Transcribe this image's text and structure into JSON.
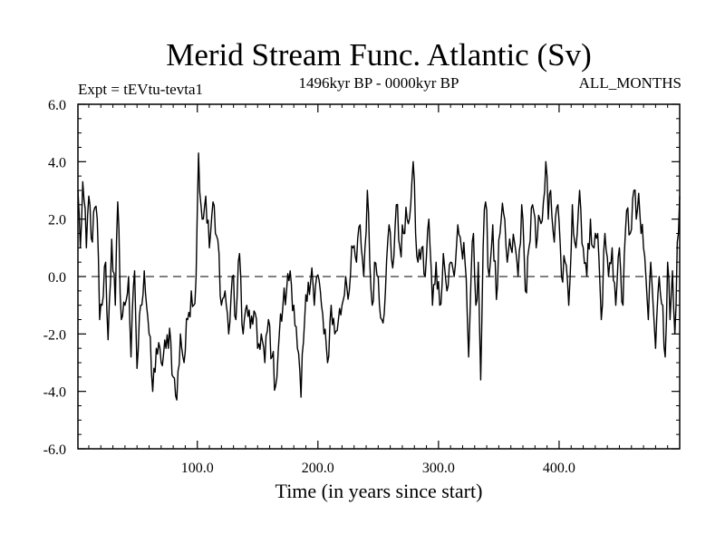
{
  "chart_data": {
    "type": "line",
    "title": "Merid Stream Func. Atlantic (Sv)",
    "subtitle": "1496kyr BP - 0000kyr BP",
    "left_label": "Expt = tEVtu-tevta1",
    "right_label": "ALL_MONTHS",
    "xlabel": "Time (in years since start)",
    "ylabel": "",
    "xlim": [
      1,
      500
    ],
    "ylim": [
      -6,
      6
    ],
    "x_ticks": [
      100,
      200,
      300,
      400
    ],
    "x_tick_labels": [
      "100.0",
      "200.0",
      "300.0",
      "400.0"
    ],
    "y_ticks": [
      6,
      4,
      2,
      0,
      -2,
      -4,
      -6
    ],
    "y_tick_labels": [
      "6.0",
      "4.0",
      "2.0",
      "0.0",
      "-2.0",
      "-4.0",
      "-6.0"
    ],
    "reference_line": 0,
    "series": [
      {
        "name": "Merid Stream Func. Atlantic",
        "x_start": 1,
        "x_step": 1,
        "anchors": [
          [
            1,
            3.0
          ],
          [
            3,
            1.0
          ],
          [
            5,
            3.3
          ],
          [
            8,
            1.0
          ],
          [
            10,
            2.8
          ],
          [
            13,
            1.2
          ],
          [
            15,
            2.4
          ],
          [
            17,
            2.0
          ],
          [
            19,
            -1.5
          ],
          [
            21,
            -1.0
          ],
          [
            24,
            0.5
          ],
          [
            26,
            -2.2
          ],
          [
            29,
            1.3
          ],
          [
            32,
            -1.0
          ],
          [
            34,
            2.6
          ],
          [
            37,
            -1.5
          ],
          [
            40,
            -1.0
          ],
          [
            43,
            0.0
          ],
          [
            45,
            -2.8
          ],
          [
            48,
            0.2
          ],
          [
            50,
            -3.2
          ],
          [
            53,
            -1.0
          ],
          [
            56,
            0.2
          ],
          [
            60,
            -2.0
          ],
          [
            63,
            -4.0
          ],
          [
            66,
            -2.5
          ],
          [
            70,
            -3.0
          ],
          [
            74,
            -2.5
          ],
          [
            77,
            -1.8
          ],
          [
            80,
            -3.5
          ],
          [
            83,
            -4.3
          ],
          [
            86,
            -2.0
          ],
          [
            89,
            -3.0
          ],
          [
            92,
            -1.5
          ],
          [
            95,
            -0.5
          ],
          [
            97,
            -1.0
          ],
          [
            99,
            0.0
          ],
          [
            101,
            4.3
          ],
          [
            104,
            2.0
          ],
          [
            107,
            2.8
          ],
          [
            110,
            1.0
          ],
          [
            113,
            2.6
          ],
          [
            115,
            1.5
          ],
          [
            118,
            0.8
          ],
          [
            120,
            -1.0
          ],
          [
            123,
            -0.5
          ],
          [
            126,
            -2.0
          ],
          [
            129,
            0.0
          ],
          [
            132,
            -1.5
          ],
          [
            135,
            0.8
          ],
          [
            138,
            -2.0
          ],
          [
            141,
            -1.0
          ],
          [
            144,
            -1.8
          ],
          [
            147,
            -1.2
          ],
          [
            150,
            -2.5
          ],
          [
            153,
            -2.0
          ],
          [
            156,
            -3.0
          ],
          [
            159,
            -1.5
          ],
          [
            162,
            -2.8
          ],
          [
            165,
            -3.8
          ],
          [
            168,
            -2.0
          ],
          [
            171,
            -1.0
          ],
          [
            174,
            -0.5
          ],
          [
            177,
            0.2
          ],
          [
            180,
            -1.0
          ],
          [
            183,
            -2.5
          ],
          [
            186,
            -4.2
          ],
          [
            189,
            -1.5
          ],
          [
            192,
            -0.2
          ],
          [
            195,
            0.3
          ],
          [
            197,
            -1.0
          ],
          [
            199,
            0.0
          ],
          [
            202,
            -0.5
          ],
          [
            205,
            -2.0
          ],
          [
            208,
            -3.0
          ],
          [
            211,
            -1.0
          ],
          [
            214,
            -2.0
          ],
          [
            217,
            -1.5
          ],
          [
            220,
            -1.0
          ],
          [
            223,
            0.0
          ],
          [
            226,
            -0.5
          ],
          [
            229,
            1.0
          ],
          [
            232,
            0.5
          ],
          [
            235,
            1.8
          ],
          [
            238,
            0.0
          ],
          [
            241,
            3.0
          ],
          [
            243,
            0.5
          ],
          [
            245,
            -1.0
          ],
          [
            247,
            0.5
          ],
          [
            250,
            0.0
          ],
          [
            253,
            -1.5
          ],
          [
            256,
            -0.5
          ],
          [
            259,
            1.8
          ],
          [
            262,
            0.3
          ],
          [
            265,
            2.5
          ],
          [
            268,
            1.0
          ],
          [
            271,
            1.5
          ],
          [
            274,
            2.0
          ],
          [
            277,
            2.5
          ],
          [
            279,
            4.0
          ],
          [
            281,
            1.5
          ],
          [
            283,
            0.5
          ],
          [
            286,
            1.0
          ],
          [
            289,
            0.0
          ],
          [
            292,
            2.0
          ],
          [
            295,
            -1.0
          ],
          [
            298,
            0.5
          ],
          [
            301,
            -1.0
          ],
          [
            304,
            0.8
          ],
          [
            307,
            -0.5
          ],
          [
            310,
            0.5
          ],
          [
            313,
            0.0
          ],
          [
            316,
            1.8
          ],
          [
            319,
            1.0
          ],
          [
            322,
            0.5
          ],
          [
            325,
            -2.8
          ],
          [
            327,
            0.0
          ],
          [
            329,
            1.5
          ],
          [
            331,
            -1.0
          ],
          [
            333,
            0.5
          ],
          [
            335,
            -3.6
          ],
          [
            337,
            1.0
          ],
          [
            339,
            2.6
          ],
          [
            342,
            0.0
          ],
          [
            345,
            1.8
          ],
          [
            348,
            -0.8
          ],
          [
            351,
            1.5
          ],
          [
            354,
            2.2
          ],
          [
            357,
            0.5
          ],
          [
            360,
            1.0
          ],
          [
            363,
            1.2
          ],
          [
            366,
            0.0
          ],
          [
            369,
            2.5
          ],
          [
            372,
            -0.5
          ],
          [
            375,
            1.0
          ],
          [
            378,
            2.5
          ],
          [
            381,
            1.0
          ],
          [
            384,
            2.0
          ],
          [
            387,
            2.6
          ],
          [
            389,
            4.0
          ],
          [
            391,
            2.0
          ],
          [
            393,
            3.0
          ],
          [
            396,
            1.2
          ],
          [
            399,
            2.5
          ],
          [
            402,
            0.0
          ],
          [
            405,
            0.5
          ],
          [
            408,
            -1.0
          ],
          [
            411,
            2.5
          ],
          [
            414,
            1.0
          ],
          [
            417,
            3.0
          ],
          [
            420,
            1.0
          ],
          [
            423,
            0.0
          ],
          [
            426,
            2.0
          ],
          [
            429,
            1.0
          ],
          [
            432,
            1.5
          ],
          [
            435,
            -1.5
          ],
          [
            438,
            1.5
          ],
          [
            441,
            0.0
          ],
          [
            444,
            1.0
          ],
          [
            447,
            -1.0
          ],
          [
            450,
            1.0
          ],
          [
            453,
            -1.0
          ],
          [
            456,
            2.3
          ],
          [
            459,
            1.5
          ],
          [
            462,
            3.0
          ],
          [
            464,
            2.0
          ],
          [
            466,
            2.9
          ],
          [
            468,
            1.5
          ],
          [
            470,
            1.0
          ],
          [
            472,
            0.0
          ],
          [
            474,
            -1.5
          ],
          [
            476,
            0.5
          ],
          [
            478,
            -1.0
          ],
          [
            480,
            -2.5
          ],
          [
            483,
            0.0
          ],
          [
            486,
            -1.0
          ],
          [
            488,
            -2.8
          ],
          [
            490,
            0.5
          ],
          [
            492,
            -1.5
          ],
          [
            494,
            0.2
          ],
          [
            496,
            -2.0
          ],
          [
            498,
            1.2
          ],
          [
            500,
            2.8
          ]
        ]
      }
    ]
  }
}
